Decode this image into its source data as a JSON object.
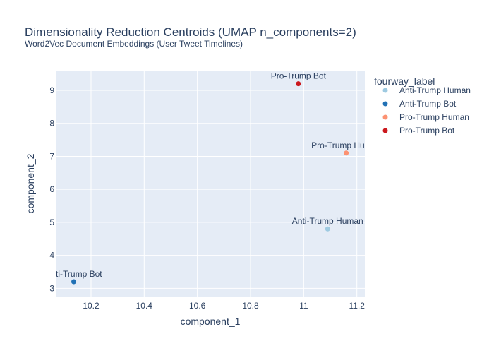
{
  "chart_data": {
    "type": "scatter",
    "title": "Dimensionality Reduction Centroids (UMAP n_components=2)",
    "subtitle": "Word2Vec Document Embeddings (User Tweet Timelines)",
    "xlabel": "component_1",
    "ylabel": "component_2",
    "xlim": [
      10.07,
      11.23
    ],
    "ylim": [
      2.75,
      9.6
    ],
    "x_ticks": [
      "10.2",
      "10.4",
      "10.6",
      "10.8",
      "11",
      "11.2"
    ],
    "y_ticks": [
      "3",
      "4",
      "5",
      "6",
      "7",
      "8",
      "9"
    ],
    "x_tick_values": [
      10.2,
      10.4,
      10.6,
      10.8,
      11.0,
      11.2
    ],
    "y_tick_values": [
      3,
      4,
      5,
      6,
      7,
      8,
      9
    ],
    "grid": true,
    "legend_title": "fourway_label",
    "legend_position": "right",
    "plot_bgcolor": "#e5ecf6",
    "series": [
      {
        "name": "Anti-Trump Human",
        "color": "#9ecae1",
        "x": 11.09,
        "y": 4.8,
        "label": "Anti-Trump Human"
      },
      {
        "name": "Anti-Trump Bot",
        "color": "#2171b5",
        "x": 10.135,
        "y": 3.2,
        "label": "Anti-Trump Bot"
      },
      {
        "name": "Pro-Trump Human",
        "color": "#fc9272",
        "x": 11.16,
        "y": 7.1,
        "label": "Pro-Trump Human"
      },
      {
        "name": "Pro-Trump Bot",
        "color": "#cb181d",
        "x": 10.98,
        "y": 9.2,
        "label": "Pro-Trump Bot"
      }
    ]
  }
}
